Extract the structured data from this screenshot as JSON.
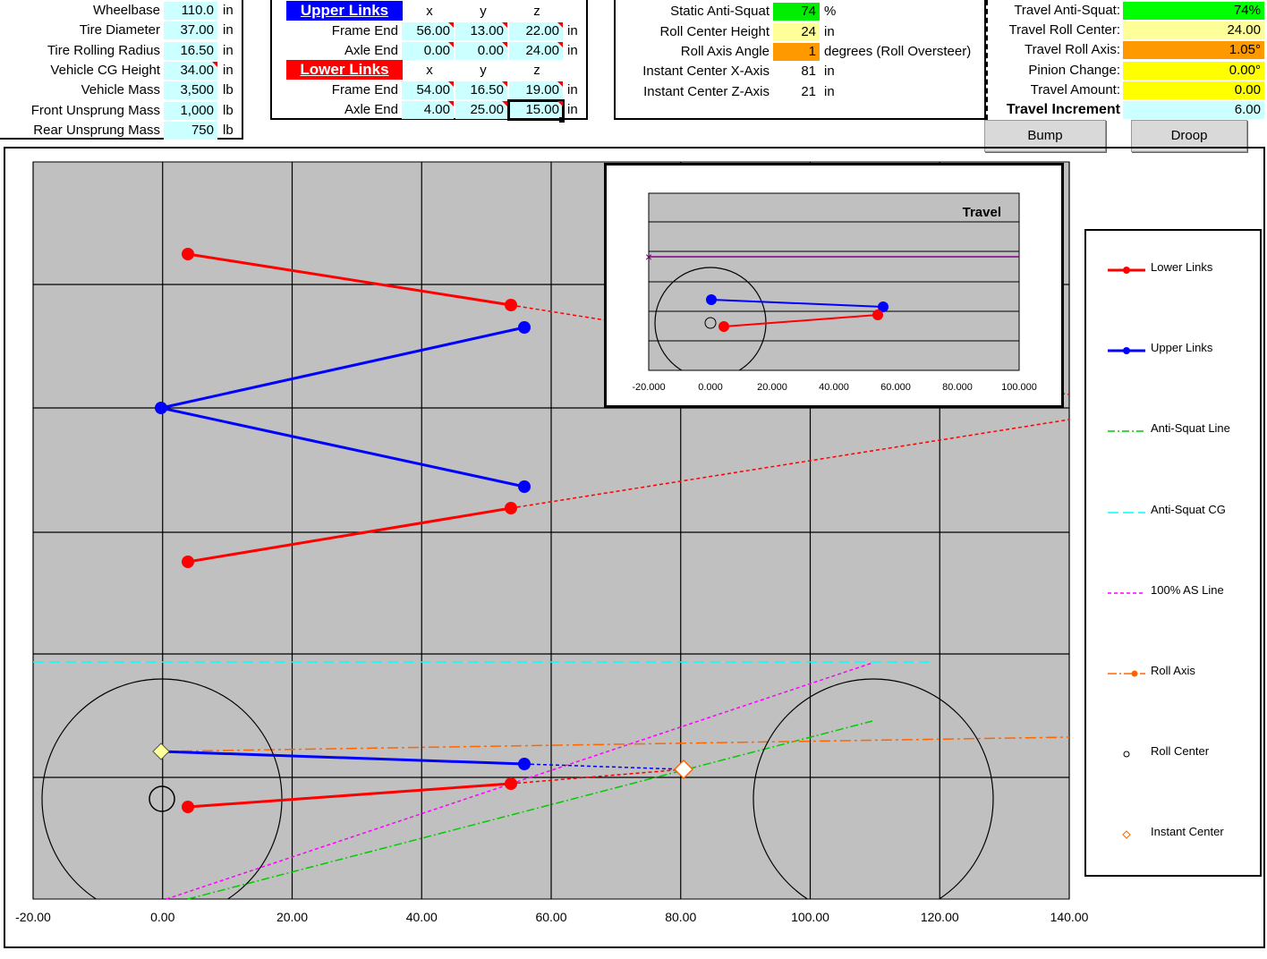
{
  "vehicle": {
    "rows": [
      {
        "label": "Wheelbase",
        "value": "110.0",
        "unit": "in",
        "flag": false
      },
      {
        "label": "Tire Diameter",
        "value": "37.00",
        "unit": "in",
        "flag": false
      },
      {
        "label": "Tire Rolling Radius",
        "value": "16.50",
        "unit": "in",
        "flag": false
      },
      {
        "label": "Vehicle CG Height",
        "value": "34.00",
        "unit": "in",
        "flag": true
      },
      {
        "label": "Vehicle Mass",
        "value": "3,500",
        "unit": "lb",
        "flag": false
      },
      {
        "label": "Front Unsprung Mass",
        "value": "1,000",
        "unit": "lb",
        "flag": false
      },
      {
        "label": "Rear Unsprung Mass",
        "value": "750",
        "unit": "lb",
        "flag": false
      }
    ]
  },
  "links": {
    "upper_title": "Upper Links",
    "lower_title": "Lower Links",
    "col_x": "x",
    "col_y": "y",
    "col_z": "z",
    "unit": "in",
    "upper": [
      {
        "label": "Frame End",
        "x": "56.00",
        "y": "13.00",
        "z": "22.00"
      },
      {
        "label": "Axle End",
        "x": "0.00",
        "y": "0.00",
        "z": "24.00"
      }
    ],
    "lower": [
      {
        "label": "Frame End",
        "x": "54.00",
        "y": "16.50",
        "z": "19.00"
      },
      {
        "label": "Axle End",
        "x": "4.00",
        "y": "25.00",
        "z": "15.00"
      }
    ]
  },
  "results": {
    "static_anti_squat_label": "Static Anti-Squat",
    "static_anti_squat_value": "74",
    "static_anti_squat_unit": "%",
    "roll_center_height_label": "Roll Center Height",
    "roll_center_height_value": "24",
    "roll_center_height_unit": "in",
    "roll_axis_angle_label": "Roll Axis Angle",
    "roll_axis_angle_value": "1",
    "roll_axis_angle_unit": "degrees (Roll Oversteer)",
    "ic_x_label": "Instant Center X-Axis",
    "ic_x_value": "81",
    "ic_x_unit": "in",
    "ic_z_label": "Instant Center Z-Axis",
    "ic_z_value": "21",
    "ic_z_unit": "in"
  },
  "travel": {
    "rows": [
      {
        "label": "Travel Anti-Squat:",
        "value": "74%",
        "color": "#00ff00"
      },
      {
        "label": "Travel Roll Center:",
        "value": "24.00",
        "color": "#ffff99"
      },
      {
        "label": "Travel Roll Axis:",
        "value": "1.05°",
        "color": "#ff9900"
      },
      {
        "label": "Pinion Change:",
        "value": "0.00°",
        "color": "#ffff00"
      },
      {
        "label": "Travel Amount:",
        "value": "0.00",
        "color": "#ffff00"
      },
      {
        "label": "Travel Increment",
        "value": "6.00",
        "color": "#ccffff"
      }
    ],
    "bump_label": "Bump",
    "droop_label": "Droop"
  },
  "colors": {
    "plot_bg": "#c0c0c0",
    "upper": "#0000ff",
    "lower": "#ff0000",
    "anti_squat": "#00cc00",
    "anti_squat_cg": "#00ffff",
    "as100": "#ff00ff",
    "roll_axis": "#ff6600"
  },
  "legend": [
    {
      "label": "Lower Links",
      "icon": "lower-links-swatch"
    },
    {
      "label": "Upper Links",
      "icon": "upper-links-swatch"
    },
    {
      "label": "Anti-Squat Line",
      "icon": "anti-squat-line-swatch"
    },
    {
      "label": "Anti-Squat CG",
      "icon": "anti-squat-cg-swatch"
    },
    {
      "label": "100% AS Line",
      "icon": "as-100-line-swatch"
    },
    {
      "label": "Roll Axis",
      "icon": "roll-axis-swatch"
    },
    {
      "label": "Roll Center",
      "icon": "roll-center-swatch"
    },
    {
      "label": "Instant Center",
      "icon": "instant-center-swatch"
    }
  ],
  "main_chart": {
    "x_ticks": [
      "-20.00",
      "0.00",
      "20.00",
      "40.00",
      "60.00",
      "80.00",
      "100.00",
      "120.00",
      "140.00"
    ]
  },
  "inset_chart": {
    "title": "Travel",
    "x_ticks": [
      "-20.000",
      "0.000",
      "20.000",
      "40.000",
      "60.000",
      "80.000",
      "100.000"
    ]
  }
}
